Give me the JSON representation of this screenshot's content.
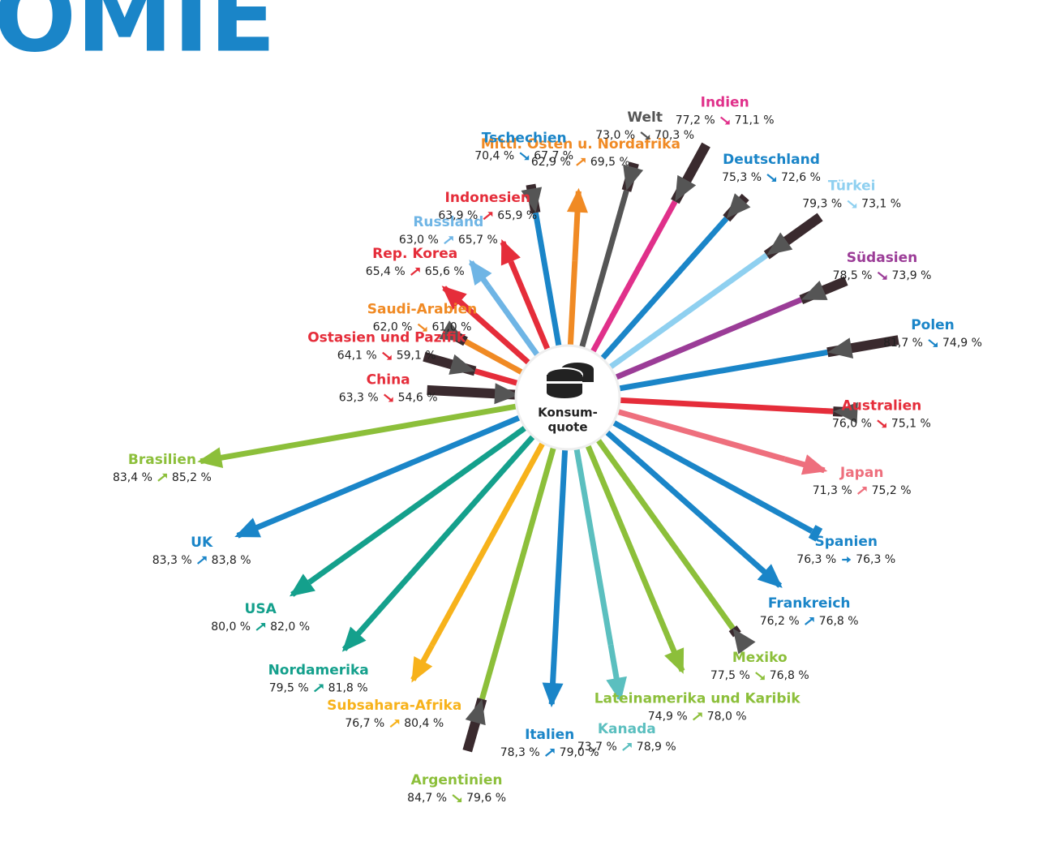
{
  "chart_data": {
    "type": "radial-arrow",
    "title": "OMIE",
    "center_label": [
      "Konsum-",
      "quote"
    ],
    "rlim": [
      50,
      86
    ],
    "series": [
      {
        "name": "Mittl. Osten u. Nordafrika",
        "color": "#f08a24",
        "values": [
          62.9,
          69.5
        ],
        "value_labels": [
          "62,9 %",
          "69,5 %"
        ]
      },
      {
        "name": "Welt",
        "color": "#555555",
        "values": [
          73.0,
          70.3
        ],
        "value_labels": [
          "73,0 %",
          "70,3 %"
        ]
      },
      {
        "name": "Indien",
        "color": "#e0308a",
        "values": [
          77.2,
          71.1
        ],
        "value_labels": [
          "77,2 %",
          "71,1 %"
        ]
      },
      {
        "name": "Deutschland",
        "color": "#1a85c8",
        "values": [
          75.3,
          72.6
        ],
        "value_labels": [
          "75,3 %",
          "72,6 %"
        ]
      },
      {
        "name": "Türkei",
        "color": "#8fd0f0",
        "values": [
          79.3,
          73.1
        ],
        "value_labels": [
          "79,3 %",
          "73,1 %"
        ]
      },
      {
        "name": "Südasien",
        "color": "#9b3c97",
        "values": [
          78.5,
          73.9
        ],
        "value_labels": [
          "78,5 %",
          "73,9 %"
        ]
      },
      {
        "name": "Polen",
        "color": "#1a85c8",
        "values": [
          81.7,
          74.9
        ],
        "value_labels": [
          "81,7 %",
          "74,9 %"
        ]
      },
      {
        "name": "Australien",
        "color": "#e52d3a",
        "values": [
          76.0,
          75.1
        ],
        "value_labels": [
          "76,0 %",
          "75,1 %"
        ]
      },
      {
        "name": "Japan",
        "color": "#ee6f7d",
        "values": [
          71.3,
          75.2
        ],
        "value_labels": [
          "71,3 %",
          "75,2 %"
        ]
      },
      {
        "name": "Spanien",
        "color": "#1a85c8",
        "values": [
          76.3,
          76.3
        ],
        "value_labels": [
          "76,3 %",
          "76,3 %"
        ]
      },
      {
        "name": "Frankreich",
        "color": "#1a85c8",
        "values": [
          76.2,
          76.8
        ],
        "value_labels": [
          "76,2 %",
          "76,8 %"
        ]
      },
      {
        "name": "Mexiko",
        "color": "#8cbf3a",
        "values": [
          77.5,
          76.8
        ],
        "value_labels": [
          "77,5 %",
          "76,8 %"
        ]
      },
      {
        "name": "Lateinamerika und Karibik",
        "color": "#8cbf3a",
        "values": [
          74.9,
          78.0
        ],
        "value_labels": [
          "74,9 %",
          "78,0 %"
        ]
      },
      {
        "name": "Kanada",
        "color": "#5bbfbf",
        "values": [
          73.7,
          78.9
        ],
        "value_labels": [
          "73,7 %",
          "78,9 %"
        ]
      },
      {
        "name": "Italien",
        "color": "#1a85c8",
        "values": [
          78.3,
          79.0
        ],
        "value_labels": [
          "78,3 %",
          "79,0 %"
        ]
      },
      {
        "name": "Argentinien",
        "color": "#8cbf3a",
        "values": [
          84.7,
          79.6
        ],
        "value_labels": [
          "84,7 %",
          "79,6 %"
        ]
      },
      {
        "name": "Subsahara-Afrika",
        "color": "#f7b21b",
        "values": [
          76.7,
          80.4
        ],
        "value_labels": [
          "76,7 %",
          "80,4 %"
        ]
      },
      {
        "name": "Nordamerika",
        "color": "#14a08c",
        "values": [
          79.5,
          81.8
        ],
        "value_labels": [
          "79,5 %",
          "81,8 %"
        ]
      },
      {
        "name": "USA",
        "color": "#14a08c",
        "values": [
          80.0,
          82.0
        ],
        "value_labels": [
          "80,0 %",
          "82,0 %"
        ]
      },
      {
        "name": "UK",
        "color": "#1a85c8",
        "values": [
          83.3,
          83.8
        ],
        "value_labels": [
          "83,3 %",
          "83,8 %"
        ]
      },
      {
        "name": "Brasilien",
        "color": "#8cbf3a",
        "values": [
          83.4,
          85.2
        ],
        "value_labels": [
          "83,4 %",
          "85,2 %"
        ]
      },
      {
        "name": "China",
        "color": "#e52d3a",
        "values": [
          63.3,
          54.6
        ],
        "value_labels": [
          "63,3 %",
          "54,6 %"
        ]
      },
      {
        "name": "Ostasien und Pazifik",
        "color": "#e52d3a",
        "values": [
          64.1,
          59.1
        ],
        "value_labels": [
          "64,1 %",
          "59,1 %"
        ]
      },
      {
        "name": "Saudi-Arabien",
        "color": "#f08a24",
        "values": [
          62.0,
          61.0
        ],
        "value_labels": [
          "62,0 %",
          "61,0 %"
        ]
      },
      {
        "name": "Rep. Korea",
        "color": "#e52d3a",
        "values": [
          65.4,
          65.6
        ],
        "value_labels": [
          "65,4 %",
          "65,6 %"
        ]
      },
      {
        "name": "Russland",
        "color": "#6fb5e5",
        "values": [
          63.0,
          65.7
        ],
        "value_labels": [
          "63,0 %",
          "65,7 %"
        ]
      },
      {
        "name": "Indonesien",
        "color": "#e52d3a",
        "values": [
          63.9,
          65.9
        ],
        "value_labels": [
          "63,9 %",
          "65,9 %"
        ]
      },
      {
        "name": "Tschechien",
        "color": "#1a85c8",
        "values": [
          70.4,
          67.7
        ],
        "value_labels": [
          "70,4 %",
          "67,7 %"
        ]
      }
    ]
  }
}
